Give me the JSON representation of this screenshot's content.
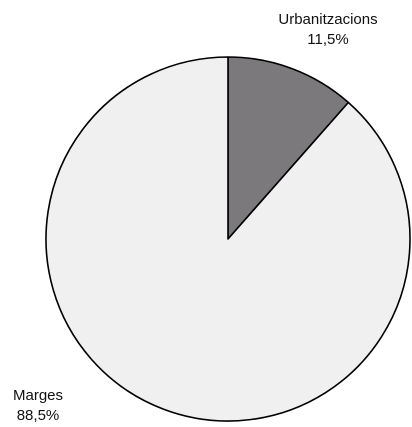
{
  "chart_data": {
    "type": "pie",
    "categories": [
      "Urbanitzacions",
      "Marges"
    ],
    "values": [
      11.5,
      88.5
    ],
    "value_labels": [
      "11,5%",
      "88,5%"
    ],
    "colors": [
      "#7b797c",
      "#f0f0f0"
    ]
  }
}
